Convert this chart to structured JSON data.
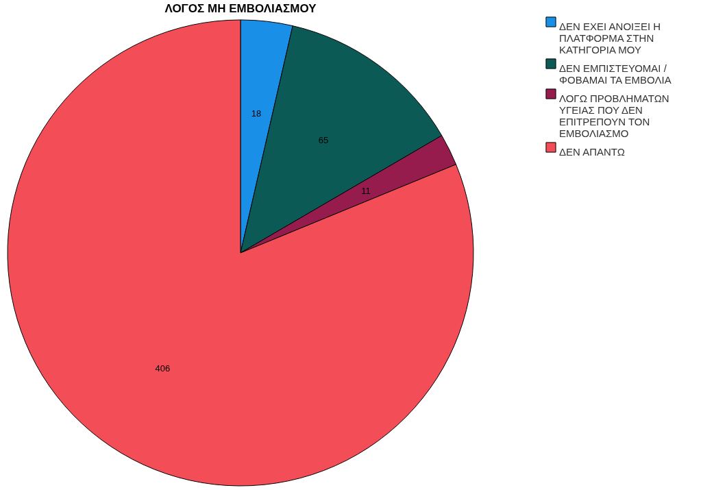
{
  "chart_data": {
    "type": "pie",
    "title": "ΛΟΓΟΣ ΜΗ ΕΜΒΟΛΙΑΣΜΟΥ",
    "categories": [
      "ΔΕΝ ΕΧΕΙ ΑΝΟΙΞΕΙ Η ΠΛΑΤΦΟΡΜΑ ΣΤΗΝ ΚΑΤΗΓΟΡΙΑ ΜΟΥ",
      "ΔΕΝ ΕΜΠΙΣΤΕΥΟΜΑΙ / ΦΟΒΑΜΑΙ ΤΑ ΕΜΒΟΛΙΑ",
      "ΛΟΓΩ ΠΡΟΒΛΗΜΑΤΩΝ ΥΓΕΙΑΣ ΠΟΥ ΔΕΝ ΕΠΙΤΡΕΠΟΥΝ ΤΟΝ ΕΜΒΟΛΙΑΣΜΟ",
      "ΔΕΝ ΑΠΑΝΤΩ"
    ],
    "values": [
      18,
      65,
      11,
      406
    ],
    "colors": [
      "#1a8fe8",
      "#0c5a55",
      "#961c4e",
      "#f34e57"
    ],
    "data_labels": true,
    "legend": "top right"
  }
}
